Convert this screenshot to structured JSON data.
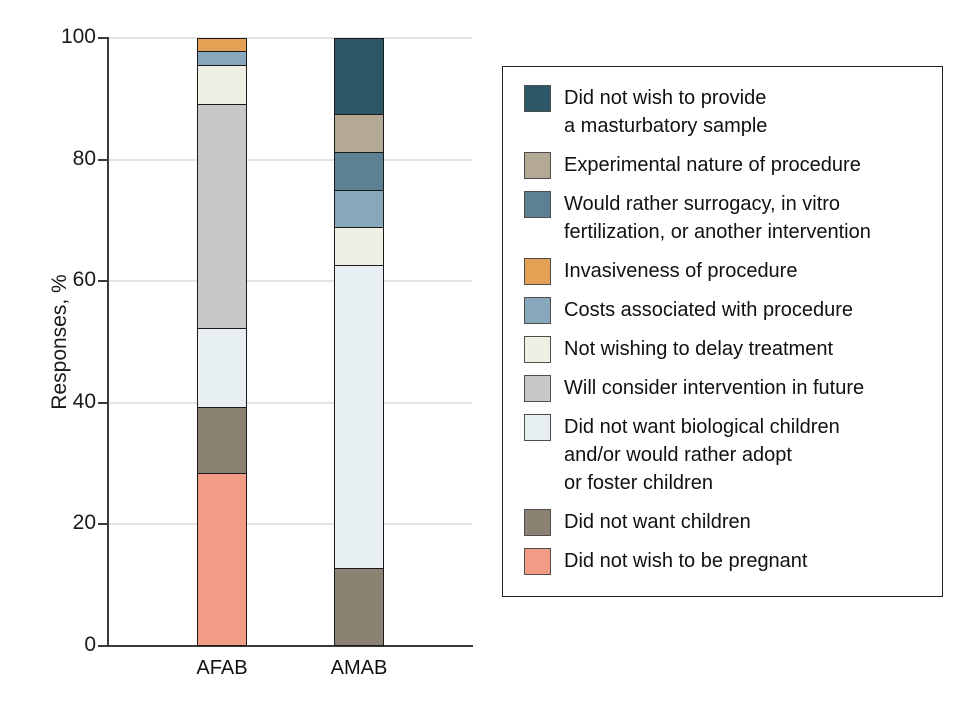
{
  "chart_data": {
    "type": "bar",
    "stacked": true,
    "title": "",
    "xlabel": "",
    "ylabel": "Responses, %",
    "ylim": [
      0,
      100
    ],
    "yticks": [
      0,
      20,
      40,
      60,
      80,
      100
    ],
    "grid": true,
    "legend_position": "right",
    "categories": [
      "AFAB",
      "AMAB"
    ],
    "series": [
      {
        "name": "Did not wish to be pregnant",
        "color": "#f29b85",
        "values": [
          28.3,
          0
        ]
      },
      {
        "name": "Did not want children",
        "color": "#8b8274",
        "values": [
          10.9,
          12.5
        ]
      },
      {
        "name": "Did not want biological children and/or would rather adopt or foster children",
        "color": "#e7eff3",
        "values": [
          13,
          50
        ]
      },
      {
        "name": "Will consider intervention in future",
        "color": "#c7c8ca",
        "values": [
          37,
          0
        ]
      },
      {
        "name": "Not wishing to delay treatment",
        "color": "#f0efe3",
        "values": [
          6.5,
          6.25
        ]
      },
      {
        "name": "Costs associated with procedure",
        "color": "#86a8ba",
        "values": [
          2.2,
          6.25
        ]
      },
      {
        "name": "Invasiveness of procedure",
        "color": "#e2a155",
        "values": [
          2.2,
          0
        ]
      },
      {
        "name": "Would rather surrogacy, in vitro fertilization, or another intervention",
        "color": "#5d8192",
        "values": [
          0,
          6.25
        ]
      },
      {
        "name": "Experimental nature of procedure",
        "color": "#b3a994",
        "values": [
          0,
          6.25
        ]
      },
      {
        "name": "Did not wish to provide a masturbatory sample",
        "color": "#2d5666",
        "values": [
          0,
          12.5
        ]
      }
    ]
  },
  "axes": {
    "y_label": "Responses, %",
    "y_ticks": [
      "0",
      "20",
      "40",
      "60",
      "80",
      "100"
    ],
    "x_labels": [
      "AFAB",
      "AMAB"
    ]
  },
  "legend": {
    "items": [
      {
        "color": "#2d5666",
        "label_lines": [
          "Did not wish to provide",
          "a masturbatory sample"
        ]
      },
      {
        "color": "#b3a994",
        "label_lines": [
          "Experimental nature of procedure"
        ]
      },
      {
        "color": "#5d8192",
        "label_lines": [
          "Would rather surrogacy, in vitro",
          "fertilization, or another intervention"
        ]
      },
      {
        "color": "#e2a155",
        "label_lines": [
          "Invasiveness of procedure"
        ]
      },
      {
        "color": "#86a8ba",
        "label_lines": [
          "Costs associated with procedure"
        ]
      },
      {
        "color": "#f0efe3",
        "label_lines": [
          "Not wishing to delay treatment"
        ]
      },
      {
        "color": "#c7c8ca",
        "label_lines": [
          "Will consider intervention in future"
        ]
      },
      {
        "color": "#e7eff3",
        "label_lines": [
          "Did not want biological children",
          "and/or would rather adopt",
          "or foster children"
        ]
      },
      {
        "color": "#8b8274",
        "label_lines": [
          "Did not want children"
        ]
      },
      {
        "color": "#f29b85",
        "label_lines": [
          "Did not wish to be pregnant"
        ]
      }
    ]
  },
  "colors": {
    "grid": "#e4e4e4",
    "axis": "#3a3a3a",
    "segment_border": "#1a1a1a",
    "legend_border": "#222222",
    "background": "#ffffff"
  }
}
